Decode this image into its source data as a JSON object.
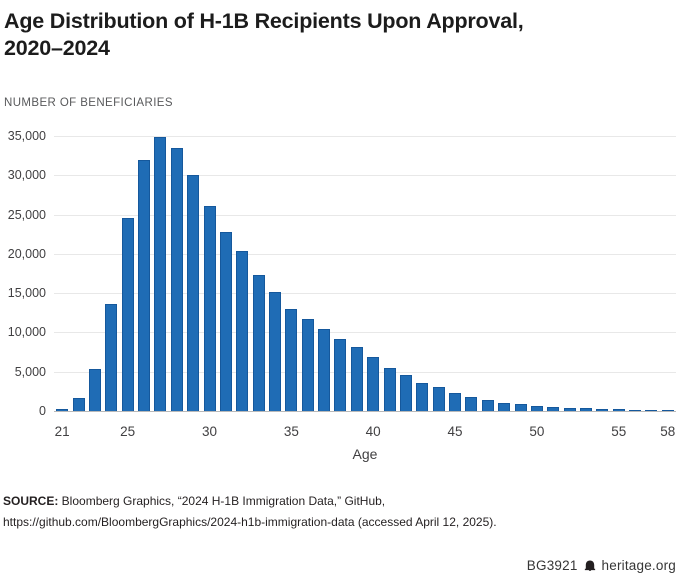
{
  "header": {
    "title_line1": "Age Distribution of H-1B Recipients Upon Approval,",
    "title_line2": "2020–2024"
  },
  "chart_data": {
    "type": "bar",
    "title": "Age Distribution of H-1B Recipients Upon Approval, 2020–2024",
    "ylabel": "NUMBER OF BENEFICIARIES",
    "xlabel": "Age",
    "categories": [
      21,
      22,
      23,
      24,
      25,
      26,
      27,
      28,
      29,
      30,
      31,
      32,
      33,
      34,
      35,
      36,
      37,
      38,
      39,
      40,
      41,
      42,
      43,
      44,
      45,
      46,
      47,
      48,
      49,
      50,
      51,
      52,
      53,
      54,
      55,
      56,
      57,
      58
    ],
    "values": [
      300,
      1700,
      5400,
      13600,
      24600,
      31900,
      34900,
      33500,
      30000,
      26100,
      22800,
      20300,
      17300,
      15200,
      13000,
      11700,
      10400,
      9100,
      8100,
      6900,
      5500,
      4600,
      3600,
      3000,
      2300,
      1800,
      1400,
      1050,
      850,
      620,
      520,
      430,
      350,
      280,
      230,
      180,
      140,
      110
    ],
    "ylim": [
      0,
      35000
    ],
    "ytick_interval": 5000,
    "ytick_labels": [
      "0",
      "5,000",
      "10,000",
      "15,000",
      "20,000",
      "25,000",
      "30,000",
      "35,000"
    ],
    "xtick_ages": [
      21,
      25,
      30,
      35,
      40,
      45,
      50,
      55,
      58
    ],
    "xtick_labels": [
      "21",
      "25",
      "30",
      "35",
      "40",
      "45",
      "50",
      "55",
      "58"
    ],
    "grid": true,
    "legend": "none",
    "bar_color": "#1f6cb5",
    "bar_border_color": "#15589c",
    "gridline_color": "#e8e8e8",
    "baseline_color": "#b9b9b9"
  },
  "footer": {
    "source_bold": "SOURCE:",
    "source_rest": " Bloomberg Graphics, “2024 H-1B Immigration Data,” GitHub,",
    "source_line2": "https://github.com/BloombergGraphics/2024-h1b-immigration-data (accessed April 12, 2025).",
    "id": "BG3921",
    "bell_icon": "liberty-bell-icon",
    "site": "heritage.org"
  }
}
